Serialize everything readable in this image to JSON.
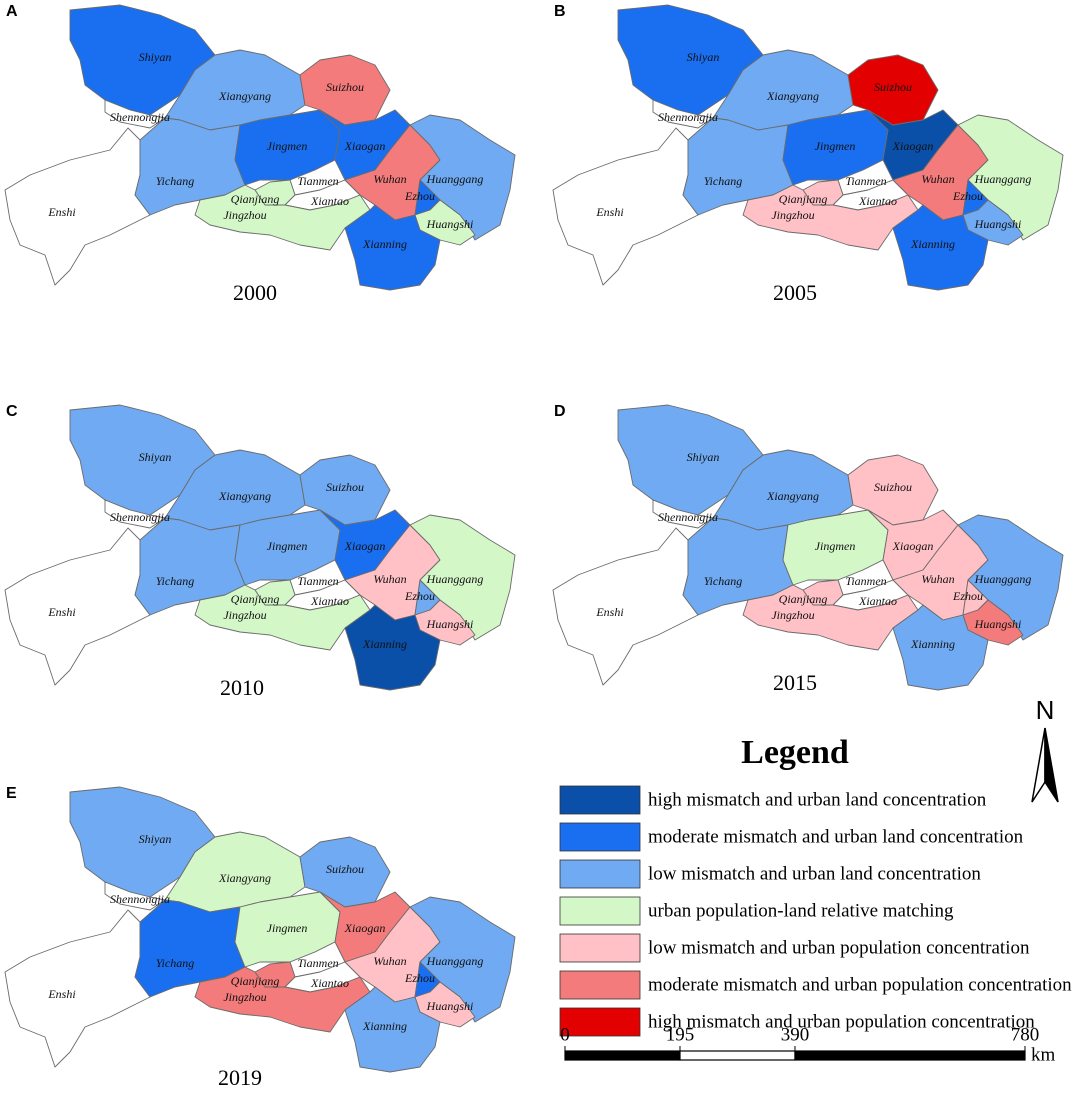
{
  "panels": [
    {
      "letter": "A",
      "year": "2000",
      "regions": [
        {
          "name": "Enshi",
          "color": "#ffffff"
        },
        {
          "name": "Shiyan",
          "color": "#1a6ff0"
        },
        {
          "name": "Shennongjia",
          "color": "#ffffff"
        },
        {
          "name": "Xiangyang",
          "color": "#6faaf2"
        },
        {
          "name": "Suizhou",
          "color": "#f47b7b"
        },
        {
          "name": "Yichang",
          "color": "#6faaf2"
        },
        {
          "name": "Jingmen",
          "color": "#1a6ff0"
        },
        {
          "name": "Xiaogan",
          "color": "#1a6ff0"
        },
        {
          "name": "Tianmen",
          "color": "#ffffff"
        },
        {
          "name": "Qianjiang",
          "color": "#d4f7c8"
        },
        {
          "name": "Xiantao",
          "color": "#ffffff"
        },
        {
          "name": "Jingzhou",
          "color": "#d4f7c8"
        },
        {
          "name": "Wuhan",
          "color": "#f47b7b"
        },
        {
          "name": "Huanggang",
          "color": "#6faaf2"
        },
        {
          "name": "Ezhou",
          "color": "#1a6ff0"
        },
        {
          "name": "Huangshi",
          "color": "#d4f7c8"
        },
        {
          "name": "Xianning",
          "color": "#1a6ff0"
        }
      ]
    },
    {
      "letter": "B",
      "year": "2005",
      "regions": [
        {
          "name": "Enshi",
          "color": "#ffffff"
        },
        {
          "name": "Shiyan",
          "color": "#1a6ff0"
        },
        {
          "name": "Shennongjia",
          "color": "#ffffff"
        },
        {
          "name": "Xiangyang",
          "color": "#6faaf2"
        },
        {
          "name": "Suizhou",
          "color": "#e30000"
        },
        {
          "name": "Yichang",
          "color": "#6faaf2"
        },
        {
          "name": "Jingmen",
          "color": "#1a6ff0"
        },
        {
          "name": "Xiaogan",
          "color": "#0a4fa8"
        },
        {
          "name": "Tianmen",
          "color": "#ffffff"
        },
        {
          "name": "Qianjiang",
          "color": "#ffc1c6"
        },
        {
          "name": "Xiantao",
          "color": "#ffffff"
        },
        {
          "name": "Jingzhou",
          "color": "#ffc1c6"
        },
        {
          "name": "Wuhan",
          "color": "#f47b7b"
        },
        {
          "name": "Huanggang",
          "color": "#d4f7c8"
        },
        {
          "name": "Ezhou",
          "color": "#1a6ff0"
        },
        {
          "name": "Huangshi",
          "color": "#6faaf2"
        },
        {
          "name": "Xianning",
          "color": "#1a6ff0"
        }
      ]
    },
    {
      "letter": "C",
      "year": "2010",
      "regions": [
        {
          "name": "Enshi",
          "color": "#ffffff"
        },
        {
          "name": "Shiyan",
          "color": "#6faaf2"
        },
        {
          "name": "Shennongjia",
          "color": "#ffffff"
        },
        {
          "name": "Xiangyang",
          "color": "#6faaf2"
        },
        {
          "name": "Suizhou",
          "color": "#6faaf2"
        },
        {
          "name": "Yichang",
          "color": "#6faaf2"
        },
        {
          "name": "Jingmen",
          "color": "#6faaf2"
        },
        {
          "name": "Xiaogan",
          "color": "#1a6ff0"
        },
        {
          "name": "Tianmen",
          "color": "#ffffff"
        },
        {
          "name": "Qianjiang",
          "color": "#d4f7c8"
        },
        {
          "name": "Xiantao",
          "color": "#ffffff"
        },
        {
          "name": "Jingzhou",
          "color": "#d4f7c8"
        },
        {
          "name": "Wuhan",
          "color": "#ffc1c6"
        },
        {
          "name": "Huanggang",
          "color": "#d4f7c8"
        },
        {
          "name": "Ezhou",
          "color": "#6faaf2"
        },
        {
          "name": "Huangshi",
          "color": "#ffc1c6"
        },
        {
          "name": "Xianning",
          "color": "#0a4fa8"
        }
      ]
    },
    {
      "letter": "D",
      "year": "2015",
      "regions": [
        {
          "name": "Enshi",
          "color": "#ffffff"
        },
        {
          "name": "Shiyan",
          "color": "#6faaf2"
        },
        {
          "name": "Shennongjia",
          "color": "#ffffff"
        },
        {
          "name": "Xiangyang",
          "color": "#6faaf2"
        },
        {
          "name": "Suizhou",
          "color": "#ffc1c6"
        },
        {
          "name": "Yichang",
          "color": "#6faaf2"
        },
        {
          "name": "Jingmen",
          "color": "#d4f7c8"
        },
        {
          "name": "Xiaogan",
          "color": "#ffc1c6"
        },
        {
          "name": "Tianmen",
          "color": "#ffffff"
        },
        {
          "name": "Qianjiang",
          "color": "#ffc1c6"
        },
        {
          "name": "Xiantao",
          "color": "#ffffff"
        },
        {
          "name": "Jingzhou",
          "color": "#ffc1c6"
        },
        {
          "name": "Wuhan",
          "color": "#ffc1c6"
        },
        {
          "name": "Huanggang",
          "color": "#6faaf2"
        },
        {
          "name": "Ezhou",
          "color": "#ffc1c6"
        },
        {
          "name": "Huangshi",
          "color": "#f47b7b"
        },
        {
          "name": "Xianning",
          "color": "#6faaf2"
        }
      ]
    },
    {
      "letter": "E",
      "year": "2019",
      "regions": [
        {
          "name": "Enshi",
          "color": "#ffffff"
        },
        {
          "name": "Shiyan",
          "color": "#6faaf2"
        },
        {
          "name": "Shennongjia",
          "color": "#ffffff"
        },
        {
          "name": "Xiangyang",
          "color": "#d4f7c8"
        },
        {
          "name": "Suizhou",
          "color": "#6faaf2"
        },
        {
          "name": "Yichang",
          "color": "#1a6ff0"
        },
        {
          "name": "Jingmen",
          "color": "#d4f7c8"
        },
        {
          "name": "Xiaogan",
          "color": "#f47b7b"
        },
        {
          "name": "Tianmen",
          "color": "#ffffff"
        },
        {
          "name": "Qianjiang",
          "color": "#f47b7b"
        },
        {
          "name": "Xiantao",
          "color": "#ffffff"
        },
        {
          "name": "Jingzhou",
          "color": "#f47b7b"
        },
        {
          "name": "Wuhan",
          "color": "#ffc1c6"
        },
        {
          "name": "Huanggang",
          "color": "#6faaf2"
        },
        {
          "name": "Ezhou",
          "color": "#1a6ff0"
        },
        {
          "name": "Huangshi",
          "color": "#ffc1c6"
        },
        {
          "name": "Xianning",
          "color": "#6faaf2"
        }
      ]
    }
  ],
  "legend": {
    "title": "Legend",
    "items": [
      {
        "label": "high mismatch and urban land concentration",
        "color": "#0a4fa8"
      },
      {
        "label": "moderate mismatch and urban land concentration",
        "color": "#1a6ff0"
      },
      {
        "label": "low mismatch and urban land concentration",
        "color": "#6faaf2"
      },
      {
        "label": "urban population-land relative matching",
        "color": "#d4f7c8"
      },
      {
        "label": "low mismatch and urban population concentration",
        "color": "#ffc1c6"
      },
      {
        "label": "moderate mismatch and urban population concentration",
        "color": "#f47b7b"
      },
      {
        "label": "high mismatch and urban population concentration",
        "color": "#e30000"
      }
    ]
  },
  "north": "N",
  "scale": {
    "ticks": [
      0,
      195,
      390,
      780
    ],
    "unit": "km"
  }
}
